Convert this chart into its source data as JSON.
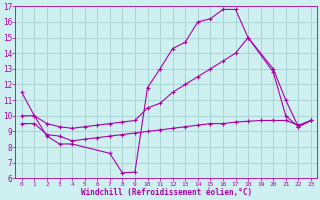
{
  "xlabel": "Windchill (Refroidissement éolien,°C)",
  "xlim": [
    -0.5,
    23.5
  ],
  "ylim": [
    6,
    17
  ],
  "xticks": [
    0,
    1,
    2,
    3,
    4,
    5,
    6,
    7,
    8,
    9,
    10,
    11,
    12,
    13,
    14,
    15,
    16,
    17,
    18,
    19,
    20,
    21,
    22,
    23
  ],
  "yticks": [
    6,
    7,
    8,
    9,
    10,
    11,
    12,
    13,
    14,
    15,
    16,
    17
  ],
  "bg_color": "#cff0f0",
  "grid_color": "#aad4d4",
  "line_color": "#aa00aa",
  "line1_x": [
    0,
    1,
    2,
    3,
    4,
    7,
    8,
    9,
    10,
    11,
    12,
    13,
    14,
    15,
    16,
    17,
    18,
    20,
    21,
    22,
    23
  ],
  "line1_y": [
    11.5,
    10.0,
    8.7,
    8.2,
    8.2,
    7.6,
    6.35,
    6.4,
    11.8,
    13.0,
    14.3,
    14.7,
    16.0,
    16.2,
    16.8,
    16.8,
    15.0,
    13.0,
    11.0,
    9.3,
    9.7
  ],
  "line2_x": [
    0,
    1,
    2,
    3,
    4,
    5,
    6,
    7,
    8,
    9,
    10,
    11,
    12,
    13,
    14,
    15,
    16,
    17,
    18,
    20,
    21,
    22,
    23
  ],
  "line2_y": [
    10.0,
    10.0,
    9.5,
    9.3,
    9.2,
    9.3,
    9.4,
    9.5,
    9.6,
    9.7,
    10.5,
    10.8,
    11.5,
    12.0,
    12.5,
    13.0,
    13.5,
    14.0,
    15.0,
    12.8,
    10.0,
    9.3,
    9.7
  ],
  "line3_x": [
    0,
    1,
    2,
    3,
    4,
    5,
    6,
    7,
    8,
    9,
    10,
    11,
    12,
    13,
    14,
    15,
    16,
    17,
    18,
    19,
    20,
    21,
    22,
    23
  ],
  "line3_y": [
    9.5,
    9.5,
    8.8,
    8.7,
    8.4,
    8.5,
    8.6,
    8.7,
    8.8,
    8.9,
    9.0,
    9.1,
    9.2,
    9.3,
    9.4,
    9.5,
    9.5,
    9.6,
    9.65,
    9.7,
    9.7,
    9.7,
    9.4,
    9.7
  ]
}
